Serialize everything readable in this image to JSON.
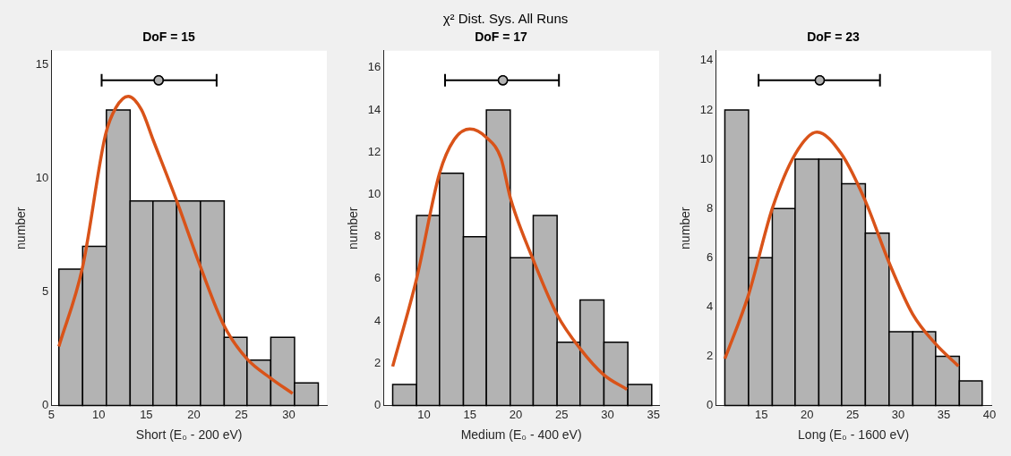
{
  "chart_data": [
    {
      "type": "other",
      "title": "χ² Dist. Sys. All Runs"
    },
    {
      "type": "histogram",
      "title": "DoF = 15",
      "xlabel": "Short (E₀ - 200 eV)",
      "ylabel": "number",
      "bins": [
        5.8,
        8.3,
        10.8,
        13.3,
        15.7,
        18.2,
        20.7,
        23.2,
        25.6,
        28.1,
        30.6,
        33.1
      ],
      "values": [
        6,
        7,
        13,
        9,
        9,
        9,
        9,
        3,
        2,
        3,
        1
      ],
      "color": "#b3b3b3",
      "xlim": [
        5,
        34
      ],
      "xticks": [
        5,
        10,
        15,
        20,
        25,
        30
      ],
      "ylim": [
        0,
        15.6
      ],
      "yticks": [
        0,
        5,
        10,
        15
      ],
      "series": [
        {
          "type": "line",
          "color": "#d95319",
          "x": [
            5.8,
            8.3,
            10.7,
            11.8,
            13.1,
            14.5,
            15.7,
            18.2,
            20.7,
            23.2,
            25.6,
            28.1,
            30.4
          ],
          "values": [
            2.6,
            6.1,
            11.9,
            13.1,
            13.6,
            13.0,
            11.7,
            9.0,
            6.1,
            3.5,
            2.05,
            1.2,
            0.53
          ]
        },
        {
          "type": "scatter",
          "color": "#b3b3b3",
          "marker": "circle",
          "x": [
            16.3
          ],
          "values": [
            14.3
          ],
          "xerrors": [
            [
              10.3,
              22.4
            ]
          ]
        }
      ]
    },
    {
      "type": "histogram",
      "title": "DoF = 17",
      "xlabel": "Medium (E₀ - 400 eV)",
      "ylabel": "number",
      "bins": [
        6.6,
        9.2,
        11.7,
        14.3,
        16.8,
        19.4,
        21.9,
        24.5,
        27.0,
        29.6,
        32.2,
        34.8
      ],
      "values": [
        1,
        9,
        11,
        8,
        14,
        7,
        9,
        3,
        5,
        3,
        1
      ],
      "color": "#b3b3b3",
      "xlim": [
        5.6,
        35.6
      ],
      "xticks": [
        10,
        15,
        20,
        25,
        30,
        35
      ],
      "ylim": [
        0,
        16.8
      ],
      "yticks": [
        0,
        2,
        4,
        6,
        8,
        10,
        12,
        14,
        16
      ],
      "series": [
        {
          "type": "line",
          "color": "#d95319",
          "x": [
            6.6,
            9.2,
            11.7,
            13.3,
            15.0,
            16.8,
            18.4,
            19.4,
            21.9,
            24.5,
            27.0,
            29.6,
            32.1
          ],
          "values": [
            1.85,
            6.0,
            11.0,
            12.6,
            13.1,
            12.7,
            11.7,
            9.85,
            6.9,
            4.3,
            2.7,
            1.45,
            0.77
          ]
        },
        {
          "type": "scatter",
          "color": "#b3b3b3",
          "marker": "circle",
          "x": [
            18.6
          ],
          "values": [
            15.4
          ],
          "xerrors": [
            [
              12.3,
              24.7
            ]
          ]
        }
      ]
    },
    {
      "type": "histogram",
      "title": "DoF = 23",
      "xlabel": "Long (E₀ - 1600 eV)",
      "ylabel": "number",
      "bins": [
        11.0,
        13.6,
        16.2,
        18.7,
        21.3,
        23.8,
        26.4,
        29.0,
        31.6,
        34.1,
        36.7,
        39.2
      ],
      "values": [
        12,
        6,
        8,
        10,
        10,
        9,
        7,
        3,
        3,
        2,
        1
      ],
      "color": "#b3b3b3",
      "xlim": [
        10,
        40.2
      ],
      "xticks": [
        15,
        20,
        25,
        30,
        35,
        40
      ],
      "ylim": [
        0,
        14.4
      ],
      "yticks": [
        0,
        2,
        4,
        6,
        8,
        10,
        12,
        14
      ],
      "series": [
        {
          "type": "line",
          "color": "#d95319",
          "x": [
            11.0,
            13.6,
            16.2,
            18.7,
            21.1,
            23.8,
            26.4,
            29.0,
            31.6,
            34.1,
            36.6
          ],
          "values": [
            1.9,
            4.5,
            8.0,
            10.2,
            11.1,
            10.2,
            8.3,
            5.8,
            3.7,
            2.5,
            1.6
          ]
        },
        {
          "type": "scatter",
          "color": "#b3b3b3",
          "marker": "circle",
          "x": [
            21.4
          ],
          "values": [
            13.2
          ],
          "xerrors": [
            [
              14.7,
              28.0
            ]
          ]
        }
      ]
    }
  ]
}
